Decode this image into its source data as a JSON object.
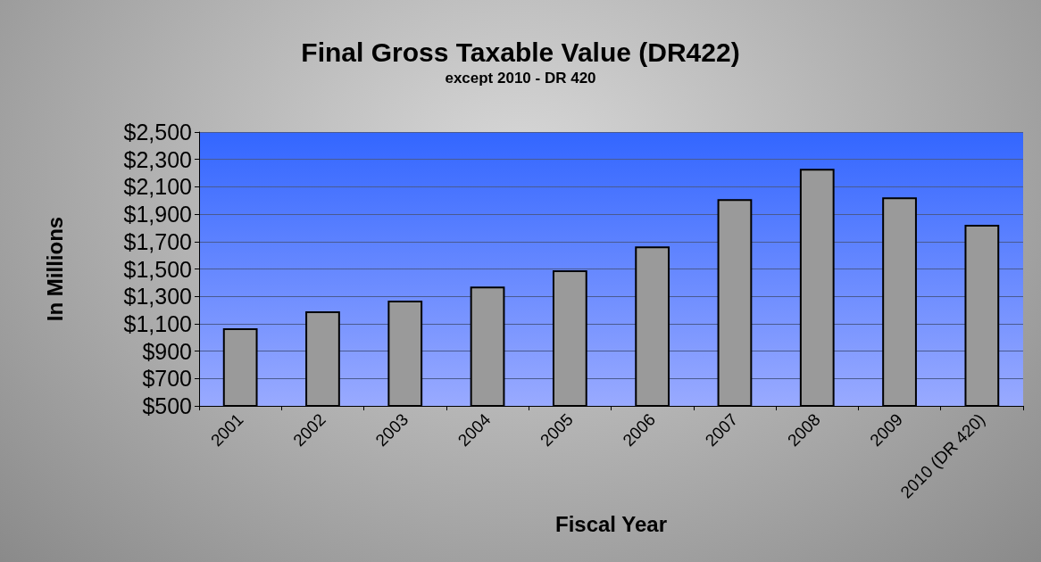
{
  "chart_data": {
    "type": "bar",
    "title": "Final Gross Taxable Value (DR422)",
    "subtitle": "except 2010 - DR 420",
    "xlabel": "Fiscal Year",
    "ylabel": "In Millions",
    "categories": [
      "2001",
      "2002",
      "2003",
      "2004",
      "2005",
      "2006",
      "2007",
      "2008",
      "2009",
      "2010 (DR 420)"
    ],
    "values": [
      1066,
      1190,
      1268,
      1372,
      1490,
      1665,
      2010,
      2232,
      2023,
      1822
    ],
    "color": "#9a9a9a",
    "ylim": [
      500,
      2500
    ],
    "yticks": [
      {
        "value": 500,
        "label": "$500"
      },
      {
        "value": 700,
        "label": "$700"
      },
      {
        "value": 900,
        "label": "$900"
      },
      {
        "value": 1100,
        "label": "$1,100"
      },
      {
        "value": 1300,
        "label": "$1,300"
      },
      {
        "value": 1500,
        "label": "$1,500"
      },
      {
        "value": 1700,
        "label": "$1,700"
      },
      {
        "value": 1900,
        "label": "$1,900"
      },
      {
        "value": 2100,
        "label": "$2,100"
      },
      {
        "value": 2300,
        "label": "$2,300"
      },
      {
        "value": 2500,
        "label": "$2,500"
      }
    ],
    "grid": "y"
  }
}
